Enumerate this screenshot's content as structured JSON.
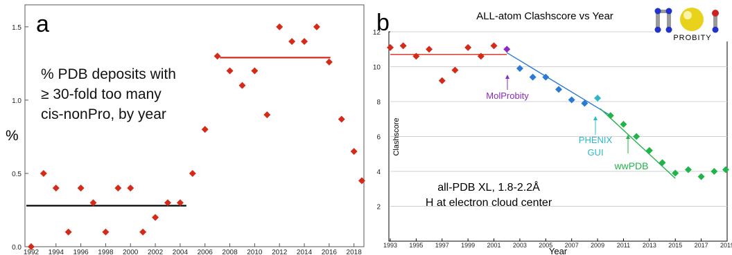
{
  "panel_a": {
    "letter": "a",
    "y_unit": "%",
    "annotation": [
      "% PDB deposits with",
      "≥ 30-fold too many",
      "cis-nonPro, by year"
    ]
  },
  "panel_b": {
    "letter": "b",
    "title": "ALL-atom Clashscore vs Year",
    "logo_text": "PROBITY",
    "xlabel": "Year",
    "ylabel": "Clashscore",
    "note": [
      "all-PDB XL, 1.8-2.2Å",
      "H at electron cloud center"
    ],
    "callouts": {
      "molprobity": "MolProbity",
      "phenix_1": "PHENIX",
      "phenix_2": "GUI",
      "wwpdb": "wwPDB"
    }
  },
  "colors": {
    "red": "#d42a1a",
    "blue": "#2a7ad4",
    "green": "#22b34a",
    "purple": "#8a2bc2",
    "cyan": "#2bb8c8",
    "black": "#000000"
  },
  "chart_data": [
    {
      "type": "scatter",
      "title": "",
      "xlabel": "",
      "ylabel": "%",
      "xlim": [
        1991.5,
        2018.8
      ],
      "ylim": [
        0,
        1.65
      ],
      "x_ticks": [
        "1992",
        "1994",
        "1996",
        "1998",
        "2000",
        "2002",
        "2004",
        "2006",
        "2008",
        "2010",
        "2012",
        "2014",
        "2016",
        "2018"
      ],
      "y_ticks": [
        "0.0",
        "0.5",
        "1.0",
        "1.5"
      ],
      "series": [
        {
          "color": "#d42a1a",
          "points": [
            [
              1992,
              0.0
            ],
            [
              1993,
              0.5
            ],
            [
              1994,
              0.4
            ],
            [
              1995,
              0.1
            ],
            [
              1996,
              0.4
            ],
            [
              1997,
              0.3
            ],
            [
              1998,
              0.1
            ],
            [
              1999,
              0.4
            ],
            [
              2000,
              0.4
            ],
            [
              2001,
              0.1
            ],
            [
              2002,
              0.2
            ],
            [
              2003,
              0.3
            ],
            [
              2004,
              0.3
            ],
            [
              2005,
              0.5
            ],
            [
              2006,
              0.8
            ],
            [
              2007,
              1.3
            ],
            [
              2008,
              1.2
            ],
            [
              2009,
              1.1
            ],
            [
              2010,
              1.2
            ],
            [
              2011,
              0.9
            ],
            [
              2012,
              1.5
            ],
            [
              2013,
              1.4
            ],
            [
              2014,
              1.4
            ],
            [
              2015,
              1.5
            ],
            [
              2016,
              1.26
            ],
            [
              2017,
              0.87
            ],
            [
              2018,
              0.65
            ],
            [
              2018.8,
              0.45
            ]
          ]
        }
      ],
      "reference_lines": [
        {
          "color": "#000000",
          "x": [
            1991.5,
            2004.5
          ],
          "y": 0.28
        },
        {
          "color": "#d42a1a",
          "x": [
            2007.2,
            2016.1
          ],
          "y": 1.29
        }
      ]
    },
    {
      "type": "scatter",
      "title": "ALL-atom Clashscore vs Year",
      "xlabel": "Year",
      "ylabel": "Clashscore",
      "xlim": [
        1993,
        2019
      ],
      "ylim": [
        0,
        12
      ],
      "x_ticks": [
        "1993",
        "1995",
        "1997",
        "1999",
        "2001",
        "2003",
        "2005",
        "2007",
        "2009",
        "2011",
        "2013",
        "2015",
        "2017",
        "2019"
      ],
      "y_ticks": [
        "2",
        "4",
        "6",
        "8",
        "10",
        "12"
      ],
      "grid": true,
      "series": [
        {
          "color": "#d42a1a",
          "points": [
            [
              1993,
              11.1
            ],
            [
              1994,
              11.2
            ],
            [
              1995,
              10.6
            ],
            [
              1996,
              11.0
            ],
            [
              1997,
              9.2
            ],
            [
              1998,
              9.8
            ],
            [
              1999,
              11.1
            ],
            [
              2000,
              10.6
            ],
            [
              2001,
              11.2
            ]
          ]
        },
        {
          "color": "#8a2bc2",
          "points": [
            [
              2002,
              11.0
            ]
          ]
        },
        {
          "color": "#2a7ad4",
          "points": [
            [
              2003,
              9.9
            ],
            [
              2004,
              9.4
            ],
            [
              2005,
              9.4
            ],
            [
              2006,
              8.7
            ],
            [
              2007,
              8.1
            ],
            [
              2008,
              7.9
            ]
          ]
        },
        {
          "color": "#2bb8c8",
          "points": [
            [
              2009,
              8.2
            ]
          ]
        },
        {
          "color": "#22b34a",
          "points": [
            [
              2010,
              7.2
            ],
            [
              2011,
              6.7
            ],
            [
              2012,
              6.0
            ],
            [
              2013,
              5.2
            ],
            [
              2014,
              4.5
            ],
            [
              2015,
              3.9
            ],
            [
              2016,
              4.1
            ],
            [
              2017,
              3.7
            ],
            [
              2018,
              4.0
            ],
            [
              2019,
              4.1
            ]
          ]
        }
      ],
      "trend_lines": [
        {
          "color": "#d42a1a",
          "from": [
            1993,
            10.7
          ],
          "to": [
            2002,
            10.7
          ]
        },
        {
          "color": "#2a7ad4",
          "from": [
            2002,
            10.8
          ],
          "to": [
            2010,
            7.2
          ]
        },
        {
          "color": "#22b34a",
          "from": [
            2009.2,
            7.6
          ],
          "to": [
            2015,
            3.6
          ]
        }
      ]
    }
  ]
}
